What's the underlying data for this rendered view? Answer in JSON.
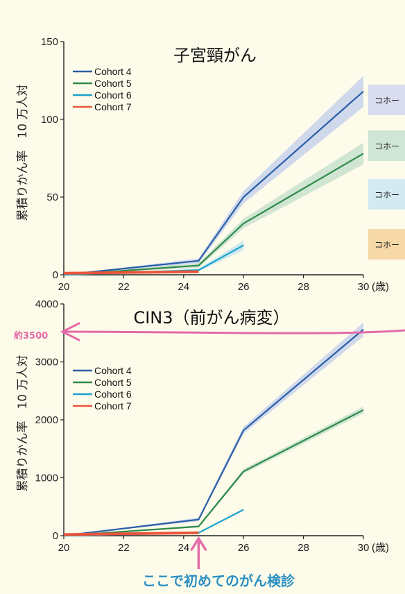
{
  "chart_data": [
    {
      "type": "line",
      "title": "子宮頸がん",
      "ylabel": "累積りかん率　10 万人対",
      "x_unit": "(歳)",
      "xlim": [
        20,
        30
      ],
      "ylim": [
        0,
        150
      ],
      "x_ticks": [
        "20",
        "22",
        "24",
        "26",
        "28",
        "30"
      ],
      "y_ticks": [
        "0",
        "50",
        "100",
        "150"
      ],
      "legend_position": "top-left",
      "series": [
        {
          "name": "Cohort 4",
          "color": "#2a5ea6",
          "band": "#c8d2ec",
          "x": [
            20,
            24.5,
            26,
            30
          ],
          "y": [
            0,
            9,
            50,
            118
          ],
          "band_width": [
            0,
            1.5,
            4,
            10
          ]
        },
        {
          "name": "Cohort 5",
          "color": "#2e8a4a",
          "band": "#c9e0cf",
          "x": [
            20,
            24.5,
            26,
            30
          ],
          "y": [
            0,
            6,
            33,
            78
          ],
          "band_width": [
            0,
            1.5,
            3,
            7
          ]
        },
        {
          "name": "Cohort 6",
          "color": "#1aa2cc",
          "band": "#c4e4ef",
          "x": [
            20,
            24.5,
            26
          ],
          "y": [
            0,
            3,
            19
          ],
          "band_width": [
            0,
            1,
            3
          ]
        },
        {
          "name": "Cohort 7",
          "color": "#e8553c",
          "band": "#f4c6b8",
          "x": [
            20,
            24.5
          ],
          "y": [
            1,
            2
          ],
          "band_width": [
            0,
            0
          ]
        }
      ]
    },
    {
      "type": "line",
      "title": "CIN3（前がん病変）",
      "ylabel": "累積りかん率　10 万人対",
      "x_unit": "(歳)",
      "xlim": [
        20,
        30
      ],
      "ylim": [
        0,
        4000
      ],
      "x_ticks": [
        "20",
        "22",
        "24",
        "26",
        "28",
        "30"
      ],
      "y_ticks": [
        "0",
        "1000",
        "2000",
        "3000",
        "4000"
      ],
      "legend_position": "top-left",
      "series": [
        {
          "name": "Cohort 4",
          "color": "#2a5ea6",
          "band": "#c8d2ec",
          "x": [
            20,
            24.5,
            26,
            30
          ],
          "y": [
            0,
            280,
            1820,
            3560
          ],
          "band_width": [
            0,
            30,
            60,
            120
          ]
        },
        {
          "name": "Cohort 5",
          "color": "#2e8a4a",
          "band": "#c9e0cf",
          "x": [
            20,
            24.5,
            26,
            30
          ],
          "y": [
            0,
            160,
            1110,
            2170
          ],
          "band_width": [
            0,
            20,
            40,
            60
          ]
        },
        {
          "name": "Cohort 6",
          "color": "#1aa2cc",
          "band": "#c4e4ef",
          "x": [
            20,
            24.5,
            26
          ],
          "y": [
            0,
            50,
            450
          ],
          "band_width": [
            0,
            10,
            20
          ]
        },
        {
          "name": "Cohort 7",
          "color": "#e8553c",
          "band": "#f4c6b8",
          "x": [
            20,
            24.5
          ],
          "y": [
            20,
            50
          ],
          "band_width": [
            0,
            0
          ]
        }
      ]
    }
  ],
  "annotations": {
    "approx_label": "約3500",
    "screening_label": "ここで初めてのがん検診",
    "side_labels": [
      "コホー",
      "コホー",
      "コホー",
      "コホー"
    ],
    "arrow_color": "#e46aa8",
    "screening_color": "#2a8fc4"
  }
}
